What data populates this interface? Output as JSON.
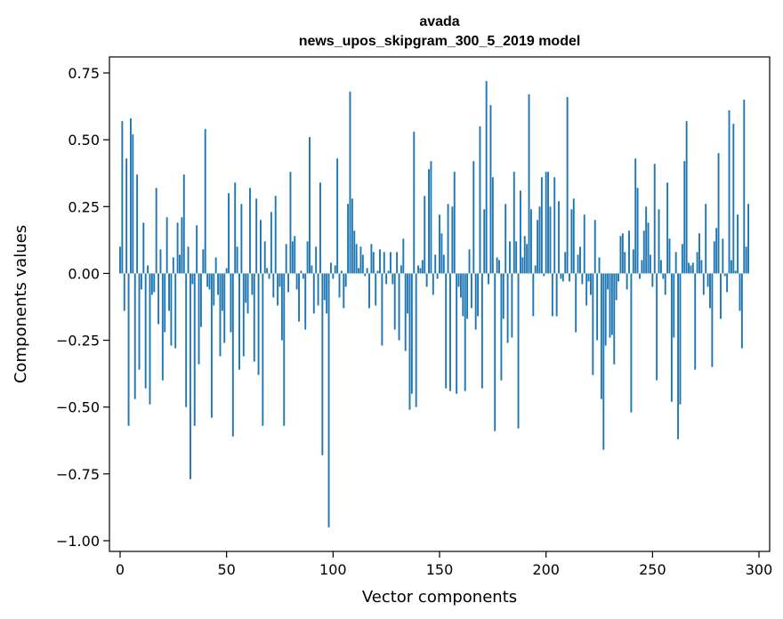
{
  "chart_data": {
    "type": "bar",
    "title": "avada",
    "subtitle": "news_upos_skipgram_300_5_2019 model",
    "xlabel": "Vector components",
    "ylabel": "Components values",
    "xlim": [
      -5,
      305
    ],
    "ylim": [
      -1.04,
      0.81
    ],
    "xticks": [
      0,
      50,
      100,
      150,
      200,
      250,
      300
    ],
    "xtick_labels": [
      "0",
      "50",
      "100",
      "150",
      "200",
      "250",
      "300"
    ],
    "yticks": [
      -1.0,
      -0.75,
      -0.5,
      -0.25,
      0.0,
      0.25,
      0.5,
      0.75
    ],
    "ytick_labels": [
      "−1.00",
      "−0.75",
      "−0.50",
      "−0.25",
      "0.00",
      "0.25",
      "0.50",
      "0.75"
    ],
    "bar_color": "#1f77b4",
    "grid": false,
    "values": [
      0.1,
      0.57,
      -0.14,
      0.43,
      -0.57,
      0.58,
      0.52,
      -0.47,
      0.37,
      -0.36,
      -0.06,
      0.19,
      -0.43,
      0.03,
      -0.49,
      -0.08,
      -0.07,
      0.32,
      -0.19,
      0.09,
      -0.4,
      -0.22,
      0.21,
      -0.14,
      -0.27,
      0.06,
      -0.28,
      0.19,
      0.07,
      0.21,
      0.37,
      -0.5,
      0.1,
      -0.77,
      -0.04,
      -0.57,
      0.18,
      -0.34,
      -0.2,
      0.09,
      0.54,
      -0.05,
      -0.06,
      -0.54,
      -0.12,
      0.06,
      -0.08,
      -0.31,
      -0.14,
      -0.26,
      0.02,
      0.3,
      -0.22,
      -0.61,
      0.34,
      0.1,
      -0.36,
      0.26,
      -0.31,
      -0.11,
      -0.15,
      0.32,
      -0.08,
      -0.33,
      0.28,
      -0.38,
      0.2,
      -0.57,
      0.12,
      0.02,
      -0.02,
      0.23,
      -0.09,
      0.29,
      -0.12,
      -0.05,
      -0.25,
      -0.57,
      0.11,
      -0.07,
      0.38,
      0.12,
      0.14,
      -0.06,
      -0.18,
      0.01,
      -0.02,
      -0.21,
      0.12,
      0.51,
      0.03,
      -0.15,
      0.1,
      -0.12,
      0.34,
      -0.68,
      -0.1,
      -0.15,
      -0.95,
      0.04,
      -0.02,
      0.03,
      0.43,
      -0.09,
      0.01,
      -0.13,
      -0.05,
      0.26,
      0.68,
      0.28,
      0.16,
      0.11,
      0.02,
      0.1,
      0.07,
      -0.01,
      0.02,
      -0.13,
      0.11,
      0.08,
      -0.12,
      0.01,
      0.09,
      -0.27,
      0.08,
      -0.04,
      0.01,
      0.08,
      -0.04,
      -0.21,
      0.08,
      -0.25,
      0.03,
      0.13,
      -0.29,
      -0.15,
      -0.51,
      -0.45,
      0.53,
      -0.5,
      0.03,
      0.02,
      0.05,
      0.29,
      -0.05,
      0.39,
      0.42,
      -0.08,
      0.07,
      -0.02,
      0.22,
      0.15,
      0.07,
      -0.43,
      0.26,
      -0.44,
      0.25,
      0.38,
      -0.45,
      -0.05,
      -0.09,
      -0.16,
      -0.44,
      -0.17,
      0.09,
      -0.13,
      0.42,
      -0.21,
      -0.16,
      0.55,
      -0.43,
      0.24,
      0.72,
      -0.04,
      0.63,
      0.36,
      -0.59,
      0.06,
      0.05,
      -0.4,
      -0.17,
      0.26,
      -0.26,
      0.12,
      -0.24,
      0.38,
      0.12,
      -0.58,
      0.31,
      0.06,
      0.14,
      0.11,
      0.67,
      0.24,
      -0.16,
      0.03,
      0.2,
      0.25,
      0.36,
      -0.01,
      0.38,
      0.38,
      0.25,
      -0.16,
      0.36,
      -0.16,
      0.27,
      -0.02,
      -0.03,
      0.08,
      0.66,
      -0.03,
      0.24,
      0.28,
      -0.22,
      0.07,
      0.1,
      -0.04,
      0.22,
      -0.12,
      -0.03,
      -0.08,
      -0.38,
      0.2,
      -0.25,
      0.06,
      -0.47,
      -0.66,
      -0.27,
      -0.06,
      -0.24,
      -0.23,
      -0.34,
      -0.1,
      -0.03,
      0.14,
      0.15,
      0.08,
      -0.06,
      0.16,
      -0.52,
      0.09,
      0.43,
      0.32,
      -0.02,
      0.05,
      0.16,
      0.25,
      0.19,
      0.07,
      -0.05,
      0.41,
      -0.4,
      0.24,
      0.05,
      -0.02,
      -0.08,
      0.34,
      0.13,
      -0.48,
      -0.24,
      0.08,
      -0.62,
      -0.49,
      0.11,
      0.42,
      0.57,
      0.04,
      0.03,
      0.04,
      -0.36,
      0.08,
      0.15,
      0.05,
      -0.08,
      0.26,
      -0.05,
      -0.13,
      -0.35,
      0.12,
      0.17,
      0.45,
      -0.17,
      0.13,
      -0.01,
      -0.07,
      0.61,
      0.05,
      0.56,
      0.01,
      0.22,
      -0.14,
      -0.28,
      0.65,
      0.1,
      0.26
    ]
  }
}
